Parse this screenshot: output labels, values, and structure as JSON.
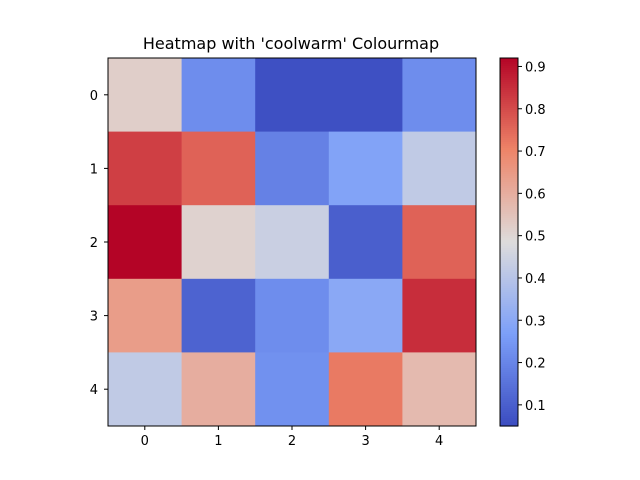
{
  "chart_data": {
    "type": "heatmap",
    "title": "Heatmap with 'coolwarm' Colourmap",
    "colormap": "coolwarm",
    "x_ticks": [
      "0",
      "1",
      "2",
      "3",
      "4"
    ],
    "y_ticks": [
      "0",
      "1",
      "2",
      "3",
      "4"
    ],
    "values": [
      [
        0.52,
        0.22,
        0.06,
        0.06,
        0.22
      ],
      [
        0.82,
        0.76,
        0.19,
        0.28,
        0.42
      ],
      [
        0.92,
        0.51,
        0.44,
        0.1,
        0.76
      ],
      [
        0.64,
        0.11,
        0.22,
        0.3,
        0.85
      ],
      [
        0.42,
        0.6,
        0.23,
        0.72,
        0.57
      ]
    ],
    "colorbar": {
      "range": [
        0.05,
        0.92
      ],
      "ticks": [
        0.1,
        0.2,
        0.3,
        0.4,
        0.5,
        0.6,
        0.7,
        0.8,
        0.9
      ],
      "tick_labels": [
        "0.1",
        "0.2",
        "0.3",
        "0.4",
        "0.5",
        "0.6",
        "0.7",
        "0.8",
        "0.9"
      ]
    }
  }
}
